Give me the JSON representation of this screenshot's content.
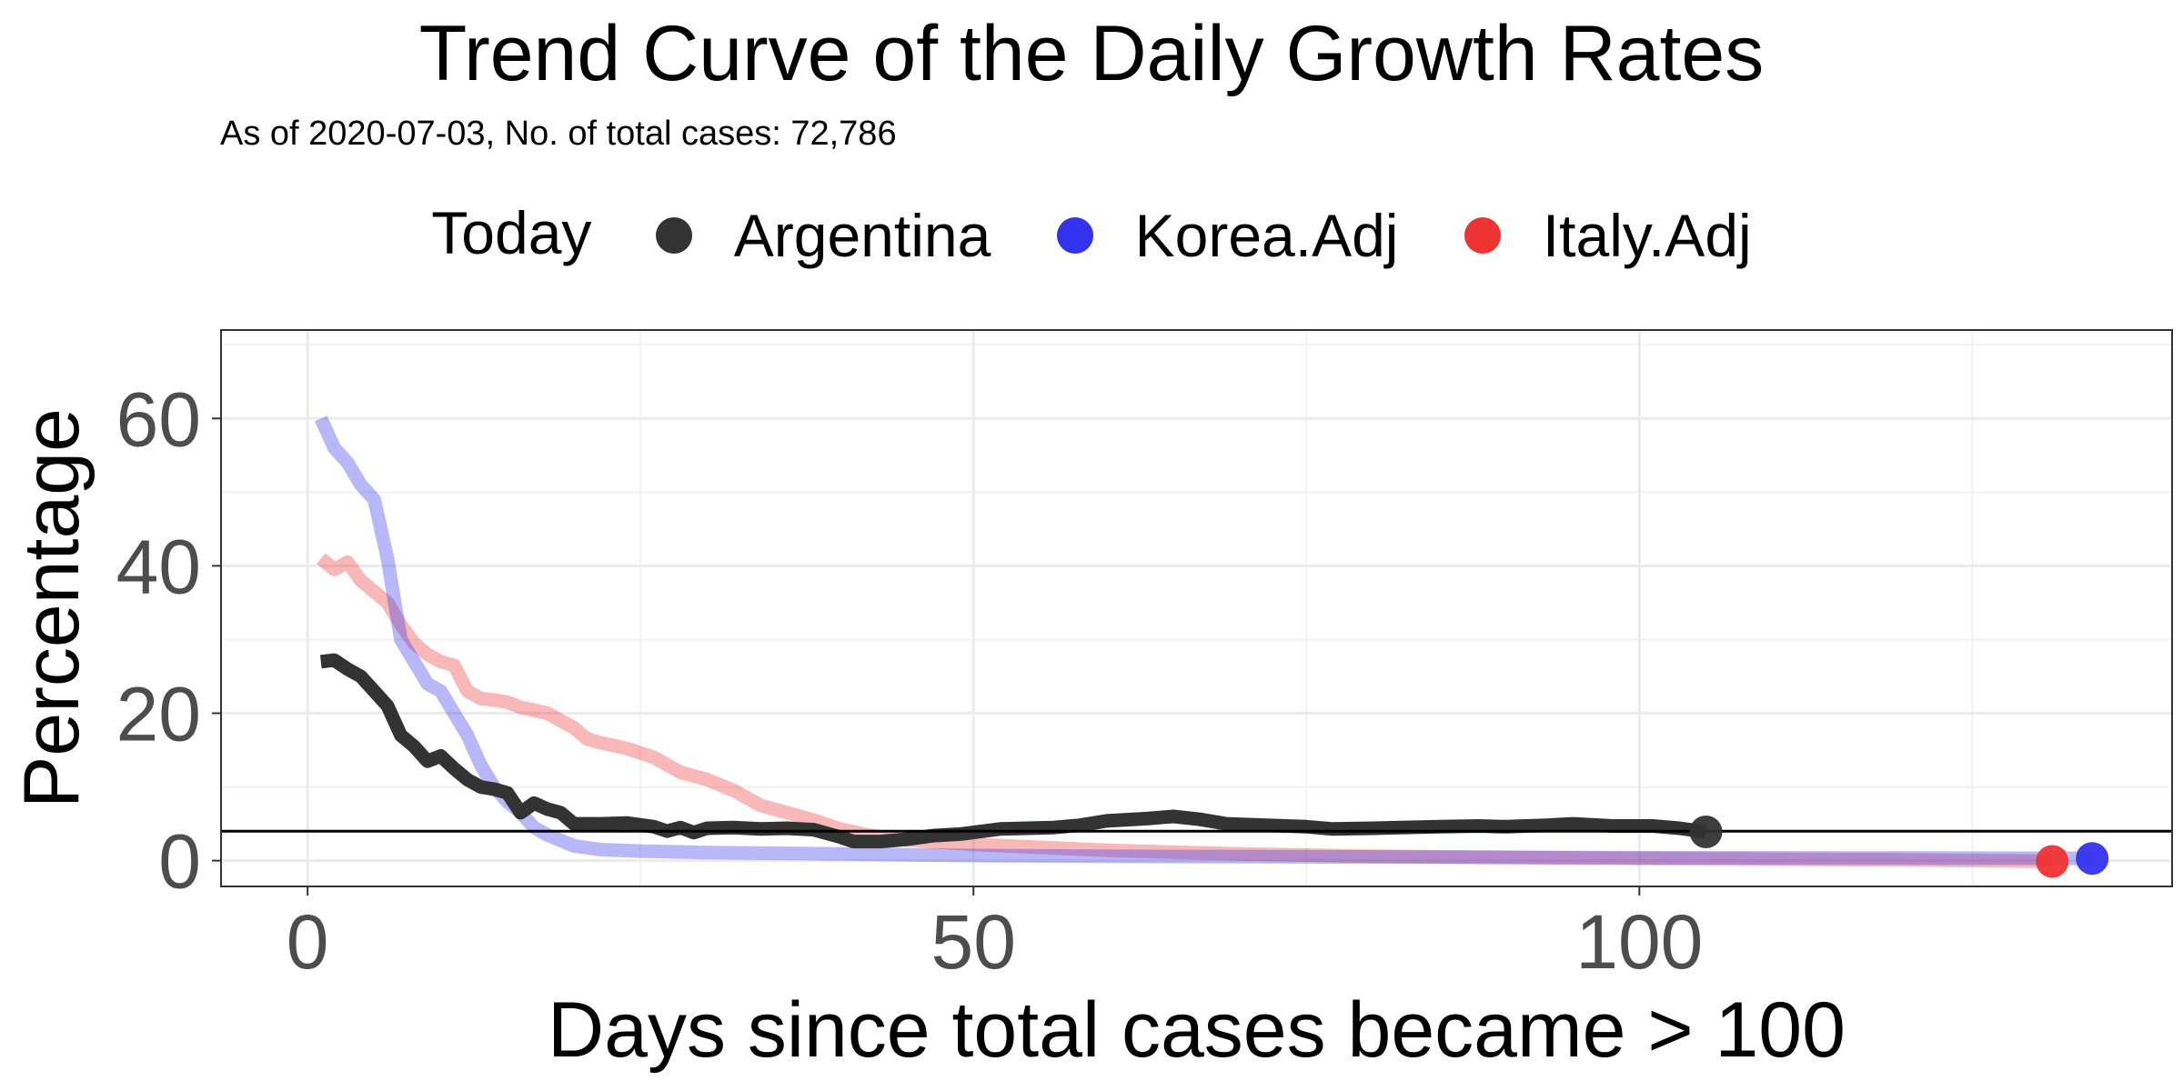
{
  "chart_data": {
    "type": "line",
    "title": "Trend Curve of the Daily Growth Rates",
    "subtitle": "As of 2020-07-03, No. of total cases: 72,786",
    "xlabel": "Days since total cases became > 100",
    "ylabel": "Percentage",
    "xlim": [
      -6.5,
      140
    ],
    "ylim": [
      -3.5,
      72
    ],
    "xticks": [
      0,
      50,
      100
    ],
    "yticks": [
      0,
      20,
      40,
      60
    ],
    "grid": true,
    "legend": {
      "title": "Today",
      "position": "top",
      "entries": [
        {
          "name": "Argentina",
          "color": "#333333"
        },
        {
          "name": "Korea.Adj",
          "color": "#3333ee"
        },
        {
          "name": "Italy.Adj",
          "color": "#ee3333"
        }
      ]
    },
    "reference_line": {
      "y": 4
    },
    "series": [
      {
        "name": "Argentina",
        "color": "#333333",
        "opacity": 1,
        "points": [
          [
            1,
            27
          ],
          [
            2,
            27.2
          ],
          [
            3,
            26
          ],
          [
            4,
            25
          ],
          [
            5,
            23
          ],
          [
            6,
            21
          ],
          [
            7,
            17
          ],
          [
            8,
            15.5
          ],
          [
            9,
            13.5
          ],
          [
            10,
            14.2
          ],
          [
            11,
            12.5
          ],
          [
            12,
            11
          ],
          [
            13,
            10
          ],
          [
            14,
            9.7
          ],
          [
            15,
            9.2
          ],
          [
            16,
            6.5
          ],
          [
            17,
            7.8
          ],
          [
            18,
            7
          ],
          [
            19,
            6.5
          ],
          [
            20,
            5
          ],
          [
            22,
            5
          ],
          [
            24,
            5.1
          ],
          [
            26,
            4.6
          ],
          [
            27,
            4
          ],
          [
            28,
            4.5
          ],
          [
            29,
            3.8
          ],
          [
            30,
            4.4
          ],
          [
            32,
            4.5
          ],
          [
            34,
            4.3
          ],
          [
            36,
            4.4
          ],
          [
            38,
            4.2
          ],
          [
            40,
            3.2
          ],
          [
            41,
            2.6
          ],
          [
            43,
            2.6
          ],
          [
            45,
            2.9
          ],
          [
            47,
            3.4
          ],
          [
            49,
            3.6
          ],
          [
            52,
            4.3
          ],
          [
            56,
            4.5
          ],
          [
            58,
            4.8
          ],
          [
            60,
            5.4
          ],
          [
            63,
            5.7
          ],
          [
            65,
            6.0
          ],
          [
            67,
            5.6
          ],
          [
            69,
            5.0
          ],
          [
            72,
            4.8
          ],
          [
            75,
            4.6
          ],
          [
            77,
            4.3
          ],
          [
            80,
            4.4
          ],
          [
            85,
            4.6
          ],
          [
            88,
            4.7
          ],
          [
            90,
            4.6
          ],
          [
            93,
            4.8
          ],
          [
            95,
            5.0
          ],
          [
            98,
            4.7
          ],
          [
            101,
            4.7
          ],
          [
            103,
            4.4
          ],
          [
            105,
            3.9
          ]
        ],
        "today": [
          105,
          3.9
        ]
      },
      {
        "name": "Korea.Adj",
        "color": "#3333ee",
        "opacity": 0.35,
        "points": [
          [
            1,
            60
          ],
          [
            2,
            56
          ],
          [
            3,
            54
          ],
          [
            4,
            51
          ],
          [
            5,
            49
          ],
          [
            6,
            41
          ],
          [
            7,
            30
          ],
          [
            8,
            27
          ],
          [
            9,
            24
          ],
          [
            10,
            23
          ],
          [
            11,
            20
          ],
          [
            12,
            17
          ],
          [
            13,
            13
          ],
          [
            14,
            10
          ],
          [
            15,
            8
          ],
          [
            16,
            6.5
          ],
          [
            17,
            4.5
          ],
          [
            18,
            3.5
          ],
          [
            20,
            2
          ],
          [
            22,
            1.5
          ],
          [
            25,
            1.3
          ],
          [
            30,
            1.1
          ],
          [
            40,
            0.9
          ],
          [
            50,
            0.7
          ],
          [
            60,
            0.6
          ],
          [
            80,
            0.5
          ],
          [
            100,
            0.4
          ],
          [
            120,
            0.35
          ],
          [
            134,
            0.3
          ]
        ],
        "today": [
          134,
          0.3
        ]
      },
      {
        "name": "Italy.Adj",
        "color": "#ee3333",
        "opacity": 0.35,
        "points": [
          [
            1,
            41
          ],
          [
            2,
            39.5
          ],
          [
            3,
            40.5
          ],
          [
            4,
            38
          ],
          [
            5,
            36.5
          ],
          [
            6,
            35
          ],
          [
            7,
            32
          ],
          [
            8,
            29.5
          ],
          [
            9,
            28
          ],
          [
            10,
            27
          ],
          [
            11,
            26.5
          ],
          [
            12,
            23
          ],
          [
            13,
            22
          ],
          [
            14,
            21.8
          ],
          [
            15,
            21.5
          ],
          [
            16,
            20.8
          ],
          [
            18,
            20
          ],
          [
            20,
            18
          ],
          [
            21,
            16.5
          ],
          [
            22,
            16
          ],
          [
            24,
            15.2
          ],
          [
            26,
            14
          ],
          [
            28,
            12
          ],
          [
            30,
            11
          ],
          [
            32,
            9.5
          ],
          [
            34,
            7.5
          ],
          [
            36,
            6.5
          ],
          [
            38,
            5.5
          ],
          [
            40,
            4.3
          ],
          [
            42,
            3.5
          ],
          [
            45,
            2.8
          ],
          [
            50,
            2.2
          ],
          [
            55,
            1.8
          ],
          [
            60,
            1.4
          ],
          [
            70,
            0.9
          ],
          [
            80,
            0.6
          ],
          [
            100,
            0.3
          ],
          [
            120,
            0.1
          ],
          [
            131,
            -0.1
          ]
        ],
        "today": [
          131,
          -0.1
        ]
      }
    ]
  }
}
